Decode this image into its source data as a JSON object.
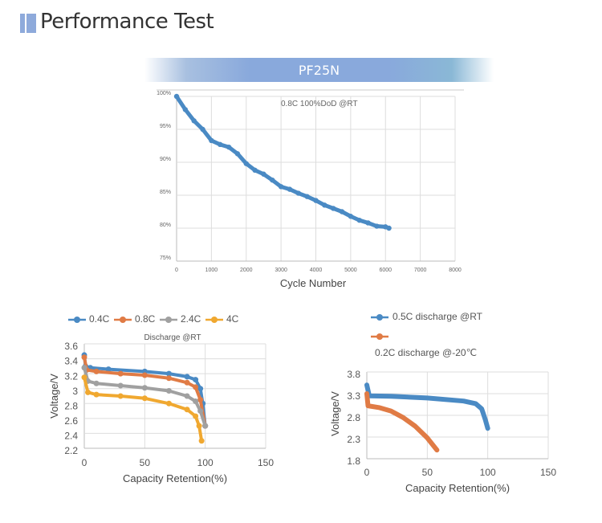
{
  "header": {
    "title": "Performance Test",
    "accent": "#8eaadb"
  },
  "model_banner": {
    "label": "PF25N"
  },
  "chart_data": [
    {
      "type": "scatter",
      "annotation": "0.8C 100%DoD @RT",
      "xlabel": "Cycle Number",
      "ylabel": "",
      "xlim": [
        0,
        8000
      ],
      "ylim": [
        75,
        100
      ],
      "xticks": [
        "0",
        "1000",
        "2000",
        "3000",
        "4000",
        "5000",
        "6000",
        "7000",
        "8000"
      ],
      "yticks": [
        "75%",
        "80%",
        "85%",
        "90%",
        "95%",
        "100%"
      ],
      "grid": true,
      "color": "#4a8ac4",
      "series": [
        {
          "x": [
            0,
            250,
            500,
            750,
            1000,
            1250,
            1500,
            1750,
            2000,
            2250,
            2500,
            2750,
            3000,
            3250,
            3500,
            3750,
            4000,
            4250,
            4500,
            4750,
            5000,
            5250,
            5500,
            5750,
            6000,
            6100
          ],
          "y": [
            100,
            98,
            96.3,
            95,
            93.3,
            92.7,
            92.3,
            91.3,
            89.8,
            88.8,
            88.2,
            87.3,
            86.3,
            85.9,
            85.3,
            84.8,
            84.2,
            83.5,
            83.0,
            82.5,
            81.8,
            81.2,
            80.8,
            80.3,
            80.2,
            80.0
          ]
        }
      ]
    },
    {
      "type": "line",
      "title": "Discharge @RT",
      "xlabel": "Capacity Retention(%)",
      "ylabel": "Voltage/V",
      "xlim": [
        0,
        150
      ],
      "ylim": [
        2.2,
        3.6
      ],
      "xticks": [
        "0",
        "50",
        "100",
        "150"
      ],
      "yticks": [
        "2.2",
        "2.4",
        "2.6",
        "2.8",
        "3",
        "3.2",
        "3.4",
        "3.6"
      ],
      "grid": true,
      "legend": "top",
      "series": [
        {
          "name": "0.4C",
          "color": "#4a8ac4",
          "points": [
            [
              0,
              3.45
            ],
            [
              1,
              3.3
            ],
            [
              5,
              3.28
            ],
            [
              20,
              3.26
            ],
            [
              50,
              3.23
            ],
            [
              70,
              3.2
            ],
            [
              85,
              3.16
            ],
            [
              92,
              3.12
            ],
            [
              96,
              3.0
            ],
            [
              98,
              2.8
            ],
            [
              100,
              2.5
            ]
          ]
        },
        {
          "name": "0.8C",
          "color": "#e07b45",
          "points": [
            [
              0,
              3.42
            ],
            [
              2,
              3.25
            ],
            [
              10,
              3.23
            ],
            [
              30,
              3.2
            ],
            [
              50,
              3.18
            ],
            [
              70,
              3.14
            ],
            [
              85,
              3.08
            ],
            [
              92,
              3.02
            ],
            [
              96,
              2.85
            ],
            [
              100,
              2.5
            ]
          ]
        },
        {
          "name": "2.4C",
          "color": "#a0a0a0",
          "points": [
            [
              0,
              3.28
            ],
            [
              3,
              3.1
            ],
            [
              10,
              3.07
            ],
            [
              30,
              3.04
            ],
            [
              50,
              3.01
            ],
            [
              70,
              2.97
            ],
            [
              85,
              2.9
            ],
            [
              92,
              2.83
            ],
            [
              96,
              2.7
            ],
            [
              100,
              2.5
            ]
          ]
        },
        {
          "name": "4C",
          "color": "#f0a830",
          "points": [
            [
              0,
              3.15
            ],
            [
              3,
              2.95
            ],
            [
              10,
              2.92
            ],
            [
              30,
              2.9
            ],
            [
              50,
              2.87
            ],
            [
              70,
              2.8
            ],
            [
              85,
              2.72
            ],
            [
              92,
              2.63
            ],
            [
              95,
              2.5
            ],
            [
              97,
              2.3
            ]
          ]
        }
      ]
    },
    {
      "type": "line",
      "xlabel": "Capacity Retention(%)",
      "ylabel": "Voltage/V",
      "xlim": [
        0,
        150
      ],
      "ylim": [
        1.8,
        3.8
      ],
      "xticks": [
        "0",
        "50",
        "100",
        "150"
      ],
      "yticks": [
        "1.8",
        "2.3",
        "2.8",
        "3.3",
        "3.8"
      ],
      "grid": true,
      "legend": "top-left",
      "series": [
        {
          "name": "0.5C discharge @RT",
          "color": "#4a8ac4",
          "points": [
            [
              0,
              3.5
            ],
            [
              2,
              3.25
            ],
            [
              20,
              3.24
            ],
            [
              50,
              3.2
            ],
            [
              80,
              3.13
            ],
            [
              90,
              3.07
            ],
            [
              95,
              2.95
            ],
            [
              98,
              2.7
            ],
            [
              100,
              2.5
            ]
          ]
        },
        {
          "name": "0.2C discharge @-20℃",
          "color": "#e07b45",
          "points": [
            [
              0,
              3.3
            ],
            [
              1,
              3.02
            ],
            [
              10,
              2.98
            ],
            [
              20,
              2.9
            ],
            [
              30,
              2.75
            ],
            [
              40,
              2.55
            ],
            [
              50,
              2.28
            ],
            [
              58,
              2.0
            ]
          ]
        }
      ]
    }
  ]
}
